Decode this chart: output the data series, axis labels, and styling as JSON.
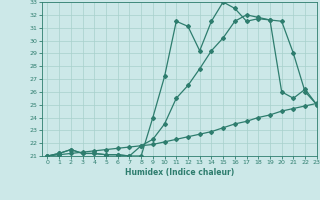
{
  "line1_x": [
    0,
    1,
    2,
    3,
    4,
    5,
    6,
    7,
    8,
    9,
    10,
    11,
    12,
    13,
    14,
    15,
    16,
    17,
    18,
    19,
    20,
    21,
    22,
    23
  ],
  "line1_y": [
    21,
    21.2,
    21.5,
    21.2,
    21.2,
    21.1,
    21.1,
    21.0,
    21.0,
    24.0,
    27.2,
    31.5,
    31.1,
    29.2,
    31.5,
    33.0,
    32.5,
    31.5,
    31.7,
    31.6,
    26.0,
    25.5,
    26.2,
    25.0
  ],
  "line2_x": [
    0,
    1,
    2,
    3,
    4,
    5,
    6,
    7,
    8,
    9,
    10,
    11,
    12,
    13,
    14,
    15,
    16,
    17,
    18,
    19,
    20,
    21,
    22,
    23
  ],
  "line2_y": [
    21,
    21.2,
    21.5,
    21.2,
    21.2,
    21.1,
    21.1,
    21.0,
    21.8,
    22.3,
    23.5,
    25.5,
    26.5,
    27.8,
    29.2,
    30.2,
    31.5,
    32.0,
    31.8,
    31.6,
    31.5,
    29.0,
    26.0,
    25.0
  ],
  "line3_x": [
    0,
    1,
    2,
    3,
    4,
    5,
    6,
    7,
    8,
    9,
    10,
    11,
    12,
    13,
    14,
    15,
    16,
    17,
    18,
    19,
    20,
    21,
    22,
    23
  ],
  "line3_y": [
    21,
    21.1,
    21.2,
    21.3,
    21.4,
    21.5,
    21.6,
    21.7,
    21.8,
    21.9,
    22.1,
    22.3,
    22.5,
    22.7,
    22.9,
    23.2,
    23.5,
    23.7,
    24.0,
    24.2,
    24.5,
    24.7,
    24.9,
    25.1
  ],
  "color": "#2e7d6e",
  "bg_color": "#cce8e8",
  "grid_color": "#a8d0cc",
  "xlabel": "Humidex (Indice chaleur)",
  "ylim": [
    21,
    33
  ],
  "xlim": [
    -0.5,
    23
  ],
  "yticks": [
    21,
    22,
    23,
    24,
    25,
    26,
    27,
    28,
    29,
    30,
    31,
    32,
    33
  ],
  "xticks": [
    0,
    1,
    2,
    3,
    4,
    5,
    6,
    7,
    8,
    9,
    10,
    11,
    12,
    13,
    14,
    15,
    16,
    17,
    18,
    19,
    20,
    21,
    22,
    23
  ],
  "marker": "D",
  "markersize": 2.0,
  "linewidth": 0.9
}
